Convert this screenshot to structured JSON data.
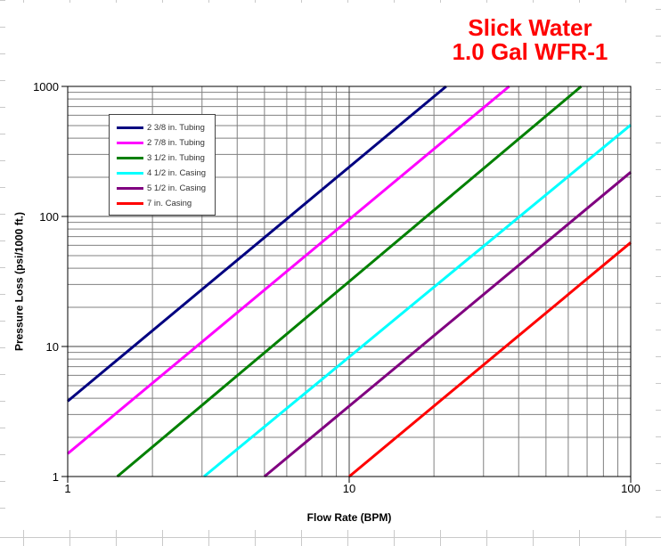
{
  "title": {
    "line1": "Slick Water",
    "line2": "1.0 Gal WFR-1",
    "color": "#FF0000"
  },
  "chart_data": {
    "type": "line",
    "title": "Slick Water 1.0 Gal WFR-1",
    "x_axis": {
      "label": "Flow Rate (BPM)",
      "scale": "log",
      "min": 1,
      "max": 100,
      "tick_labels": [
        "1",
        "10",
        "100"
      ],
      "tick_values": [
        1,
        10,
        100
      ]
    },
    "y_axis": {
      "label": "Pressure Loss (psi/1000 ft.)",
      "scale": "log",
      "min": 1,
      "max": 1000,
      "tick_labels": [
        "1",
        "10",
        "100",
        "1000"
      ],
      "tick_values": [
        1,
        10,
        100,
        1000
      ]
    },
    "grid": {
      "major": true,
      "minor": true,
      "minor_color": "#808080",
      "major_color": "#404040",
      "border_color": "#000000"
    },
    "legend_position": "upper-left",
    "series": [
      {
        "name": "2 3/8 in. Tubing",
        "color": "#000080",
        "points": [
          [
            1,
            3.8
          ],
          [
            22.1,
            1000
          ]
        ]
      },
      {
        "name": "2 7/8 in. Tubing",
        "color": "#FF00FF",
        "points": [
          [
            1,
            1.5
          ],
          [
            37,
            1000
          ]
        ]
      },
      {
        "name": "3 1/2 in. Tubing",
        "color": "#008000",
        "points": [
          [
            1.5,
            1
          ],
          [
            66.7,
            1000
          ]
        ]
      },
      {
        "name": "4 1/2 in. Casing",
        "color": "#00FFFF",
        "points": [
          [
            3.05,
            1
          ],
          [
            100,
            505
          ]
        ]
      },
      {
        "name": "5 1/2 in. Casing",
        "color": "#800080",
        "points": [
          [
            5,
            1
          ],
          [
            100,
            219
          ]
        ]
      },
      {
        "name": "7 in. Casing",
        "color": "#FF0000",
        "points": [
          [
            10,
            1
          ],
          [
            100,
            63
          ]
        ]
      }
    ]
  }
}
